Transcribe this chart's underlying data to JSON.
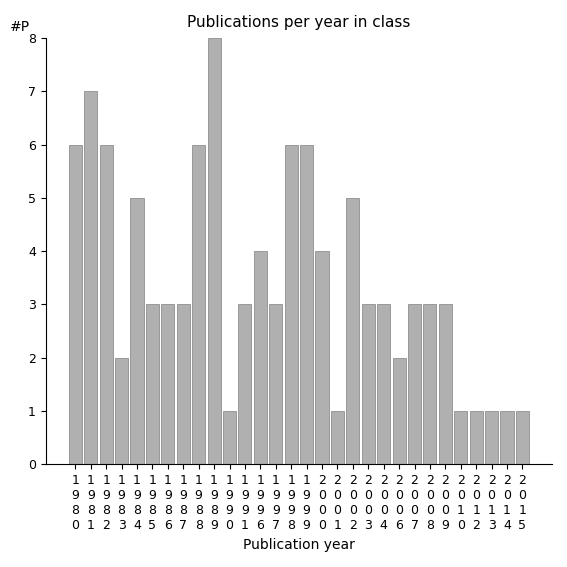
{
  "categories": [
    "1980",
    "1981",
    "1982",
    "1983",
    "1984",
    "1985",
    "1986",
    "1987",
    "1988",
    "1989",
    "1990",
    "1991",
    "1996",
    "1997",
    "1998",
    "1999",
    "2000",
    "2001",
    "2002",
    "2003",
    "2004",
    "2006",
    "2007",
    "2008",
    "2009",
    "2010",
    "2012",
    "2013",
    "2014",
    "2015"
  ],
  "values": [
    6,
    7,
    6,
    2,
    5,
    3,
    3,
    3,
    6,
    8,
    1,
    3,
    4,
    3,
    6,
    6,
    4,
    1,
    5,
    3,
    3,
    2,
    3,
    3,
    3,
    1,
    1,
    1,
    1,
    1
  ],
  "bar_color": "#b0b0b0",
  "bar_edgecolor": "#808080",
  "title": "Publications per year in class",
  "xlabel": "Publication year",
  "ylabel": "#P",
  "ylim": [
    0,
    8
  ],
  "yticks": [
    0,
    1,
    2,
    3,
    4,
    5,
    6,
    7,
    8
  ],
  "title_fontsize": 11,
  "label_fontsize": 10,
  "tick_fontsize": 9,
  "background_color": "#ffffff"
}
